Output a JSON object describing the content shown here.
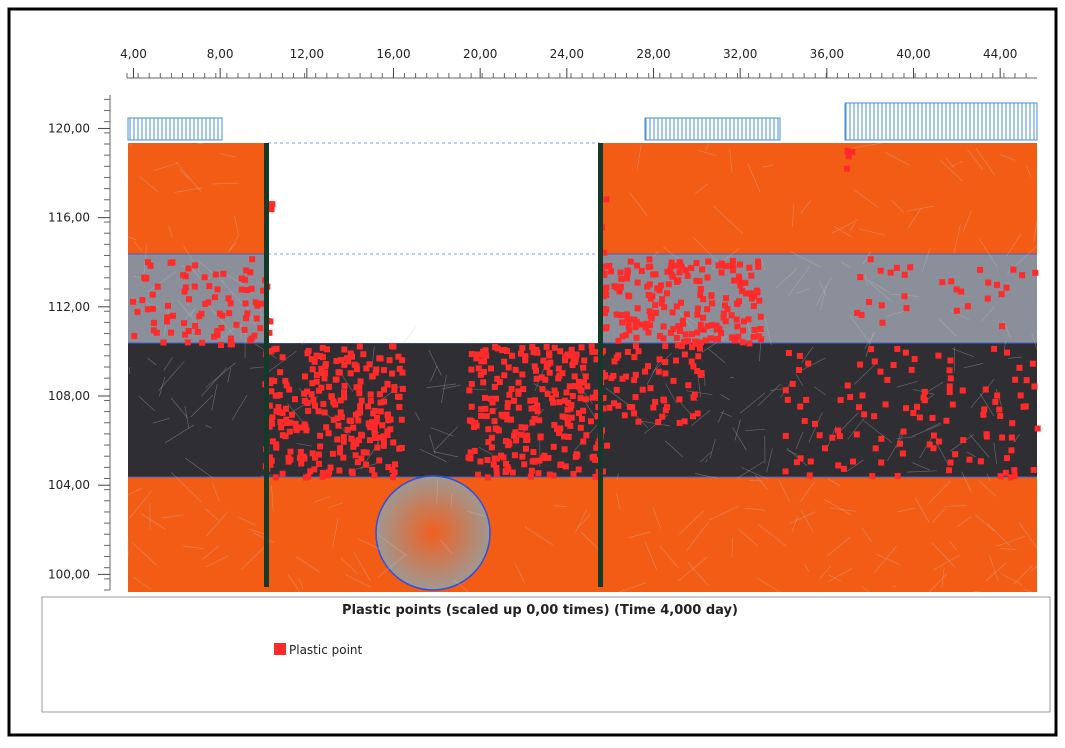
{
  "plot": {
    "title": "Plastic points (scaled up 0,00 times) (Time 4,000 day)",
    "legend": [
      {
        "name": "Plastic point",
        "color": "#ff2a2a"
      }
    ],
    "xlim": [
      3.7,
      45.7
    ],
    "xticks": [
      {
        "value": 4,
        "label": "4,00"
      },
      {
        "value": 8,
        "label": "8,00"
      },
      {
        "value": 12,
        "label": "12,00"
      },
      {
        "value": 16,
        "label": "16,00"
      },
      {
        "value": 20,
        "label": "20,00"
      },
      {
        "value": 24,
        "label": "24,00"
      },
      {
        "value": 28,
        "label": "28,00"
      },
      {
        "value": 32,
        "label": "32,00"
      },
      {
        "value": 36,
        "label": "36,00"
      },
      {
        "value": 40,
        "label": "40,00"
      },
      {
        "value": 44,
        "label": "44,00"
      }
    ],
    "ylim": [
      99.3,
      121.5
    ],
    "yticks": [
      {
        "value": 100,
        "label": "100,00"
      },
      {
        "value": 104,
        "label": "104,00"
      },
      {
        "value": 108,
        "label": "108,00"
      },
      {
        "value": 112,
        "label": "112,00"
      },
      {
        "value": 116,
        "label": "116,00"
      },
      {
        "value": 120,
        "label": "120,00"
      }
    ]
  }
}
